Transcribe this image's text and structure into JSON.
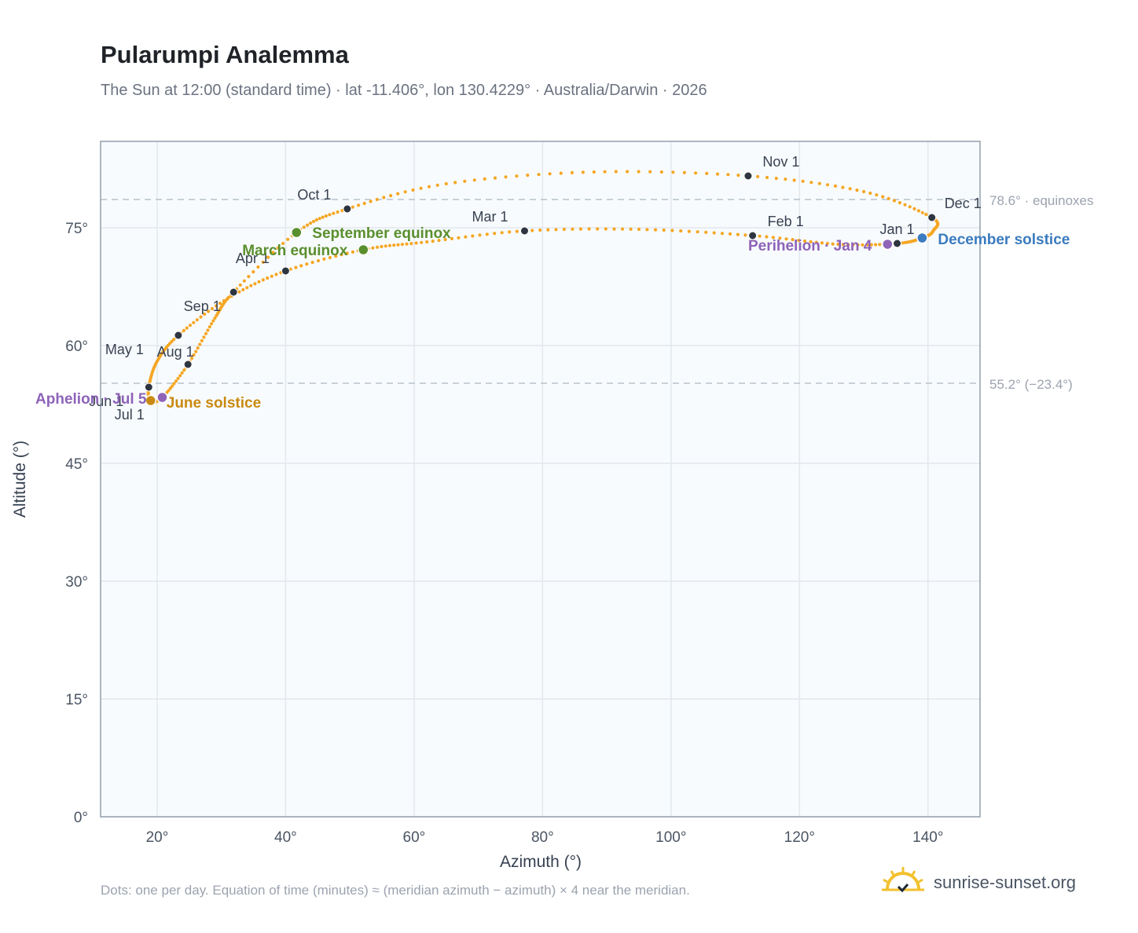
{
  "header": {
    "title": "Pularumpi Analemma",
    "subtitle": "The Sun at 12:00 (standard time) · lat -11.406°, lon 130.4229° · Australia/Darwin · 2026"
  },
  "footer": {
    "note": "Dots: one per day. Equation of time (minutes) ≈ (meridian azimuth − azimuth) × 4 near the meridian.",
    "brand": "sunrise-sunset.org"
  },
  "colors": {
    "curve": "#f5a623",
    "month_dot": "#2d3540",
    "equinox": "#5a8f2e",
    "june_solstice": "#c98a10",
    "december_solstice": "#3b7bbf",
    "apsis": "#8e63b8",
    "plot_bg": "#f8fbfd",
    "grid": "#e3e8ee",
    "reference_line": "#b8c2cc"
  },
  "chart_data": {
    "type": "scatter",
    "title": "Pularumpi Analemma",
    "xlabel": "Azimuth (°)",
    "ylabel": "Altitude (°)",
    "xlim": [
      11.2,
      148.1
    ],
    "ylim": [
      0,
      86
    ],
    "x_ticks": [
      20,
      40,
      60,
      80,
      100,
      120,
      140
    ],
    "x_tick_labels": [
      "20°",
      "40°",
      "60°",
      "80°",
      "100°",
      "120°",
      "140°"
    ],
    "y_ticks": [
      0,
      15,
      30,
      45,
      60,
      75
    ],
    "y_tick_labels": [
      "0°",
      "15°",
      "30°",
      "45°",
      "60°",
      "75°"
    ],
    "grid": true,
    "reference_lines": [
      {
        "y": 78.6,
        "label": "78.6° · equinoxes"
      },
      {
        "y": 55.2,
        "label": "55.2° (−23.4°)"
      }
    ],
    "path_knots": [
      {
        "x": 139.1,
        "y": 73.7
      },
      {
        "x": 135.2,
        "y": 73.0
      },
      {
        "x": 126.0,
        "y": 72.9
      },
      {
        "x": 112.7,
        "y": 74.0
      },
      {
        "x": 95.0,
        "y": 74.8
      },
      {
        "x": 77.2,
        "y": 74.6
      },
      {
        "x": 62.0,
        "y": 73.2
      },
      {
        "x": 52.1,
        "y": 72.2
      },
      {
        "x": 40.0,
        "y": 69.5
      },
      {
        "x": 31.0,
        "y": 66.0
      },
      {
        "x": 23.3,
        "y": 61.3
      },
      {
        "x": 20.0,
        "y": 58.0
      },
      {
        "x": 18.7,
        "y": 54.7
      },
      {
        "x": 19.0,
        "y": 53.0
      },
      {
        "x": 20.8,
        "y": 53.4
      },
      {
        "x": 24.8,
        "y": 57.6
      },
      {
        "x": 29.0,
        "y": 63.5
      },
      {
        "x": 31.9,
        "y": 66.8
      },
      {
        "x": 41.7,
        "y": 74.4
      },
      {
        "x": 49.6,
        "y": 77.4
      },
      {
        "x": 65.0,
        "y": 80.6
      },
      {
        "x": 88.0,
        "y": 82.1
      },
      {
        "x": 112.0,
        "y": 81.6
      },
      {
        "x": 130.0,
        "y": 79.6
      },
      {
        "x": 140.6,
        "y": 76.3
      },
      {
        "x": 140.8,
        "y": 74.6
      },
      {
        "x": 139.1,
        "y": 73.7
      }
    ],
    "month_markers": [
      {
        "date": "Jan 1",
        "x": 135.2,
        "y": 73.0
      },
      {
        "date": "Feb 1",
        "x": 112.7,
        "y": 74.0
      },
      {
        "date": "Mar 1",
        "x": 77.2,
        "y": 74.6
      },
      {
        "date": "Apr 1",
        "x": 40.0,
        "y": 69.5
      },
      {
        "date": "May 1",
        "x": 23.3,
        "y": 61.3
      },
      {
        "date": "Jun 1",
        "x": 18.7,
        "y": 54.7
      },
      {
        "date": "Jul 1",
        "x": 19.0,
        "y": 53.0
      },
      {
        "date": "Aug 1",
        "x": 24.8,
        "y": 57.6
      },
      {
        "date": "Sep 1",
        "x": 31.9,
        "y": 66.8
      },
      {
        "date": "Oct 1",
        "x": 49.6,
        "y": 77.4
      },
      {
        "date": "Nov 1",
        "x": 112.0,
        "y": 81.6
      },
      {
        "date": "Dec 1",
        "x": 140.6,
        "y": 76.3
      }
    ],
    "special_markers": [
      {
        "label": "March equinox",
        "x": 52.1,
        "y": 72.2,
        "color_key": "equinox"
      },
      {
        "label": "September equinox",
        "x": 41.7,
        "y": 74.4,
        "color_key": "equinox"
      },
      {
        "label": "June solstice",
        "x": 19.0,
        "y": 53.0,
        "color_key": "june_solstice"
      },
      {
        "label": "December solstice",
        "x": 139.1,
        "y": 73.7,
        "color_key": "december_solstice"
      },
      {
        "label": "Perihelion · Jan 4",
        "x": 133.7,
        "y": 72.9,
        "color_key": "apsis"
      },
      {
        "label": "Aphelion · Jul 5",
        "x": 20.8,
        "y": 53.4,
        "color_key": "apsis"
      }
    ]
  }
}
